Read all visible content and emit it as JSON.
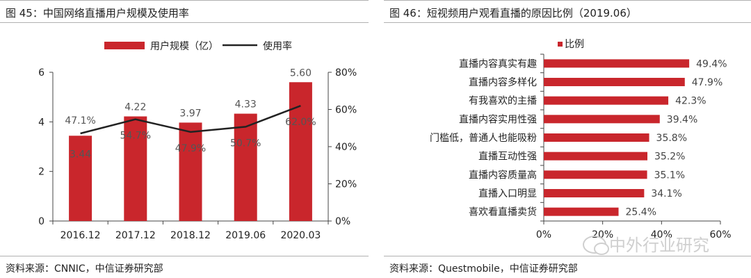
{
  "colors": {
    "bar": "#c9262c",
    "line": "#222222",
    "axis": "#444444"
  },
  "left": {
    "title": "图 45：中国网络直播用户规模及使用率",
    "source": "资料来源：CNNIC，中信证券研究部",
    "chart_data": {
      "type": "bar",
      "categories": [
        "2016.12",
        "2017.12",
        "2018.12",
        "2019.06",
        "2020.03"
      ],
      "series": [
        {
          "name": "用户规模（亿）",
          "type": "bar",
          "axis": "left",
          "values": [
            3.44,
            4.22,
            3.97,
            4.33,
            5.6
          ],
          "labels": [
            "3.44",
            "4.22",
            "3.97",
            "4.33",
            "5.60"
          ]
        },
        {
          "name": "使用率",
          "type": "line",
          "axis": "right",
          "values": [
            47.1,
            54.7,
            47.9,
            50.7,
            62.0
          ],
          "labels": [
            "47.1%",
            "54.7%",
            "47.9%",
            "50.7%",
            "62.0%"
          ]
        }
      ],
      "ylim_left": [
        0,
        6
      ],
      "yticks_left": [
        "0",
        "2",
        "4",
        "6"
      ],
      "ylim_right": [
        0,
        80
      ],
      "yticks_right": [
        "0%",
        "20%",
        "40%",
        "60%",
        "80%"
      ],
      "legend": "top"
    }
  },
  "right": {
    "title": "图 46：短视频用户观看直播的原因比例（2019.06）",
    "source": "资料来源：Questmobile，中信证券研究部",
    "chart_data": {
      "type": "bar",
      "orientation": "horizontal",
      "categories": [
        "直播内容真实有趣",
        "直播内容多样化",
        "有我喜欢的主播",
        "直播内容实用性强",
        "门槛低，普通人也能吸粉",
        "直播互动性强",
        "直播内容质量高",
        "直播入口明显",
        "喜欢看直播卖货"
      ],
      "series": [
        {
          "name": "比例",
          "values": [
            49.4,
            47.9,
            42.3,
            39.4,
            35.8,
            35.2,
            35.1,
            34.1,
            25.4
          ],
          "labels": [
            "49.4%",
            "47.9%",
            "42.3%",
            "39.4%",
            "35.8%",
            "35.2%",
            "35.1%",
            "34.1%",
            "25.4%"
          ]
        }
      ],
      "xlim": [
        0,
        60
      ],
      "xticks": [
        "0%",
        "20%",
        "40%",
        "60%"
      ],
      "legend": "top"
    }
  },
  "watermark": {
    "text": "中外行业研究"
  }
}
